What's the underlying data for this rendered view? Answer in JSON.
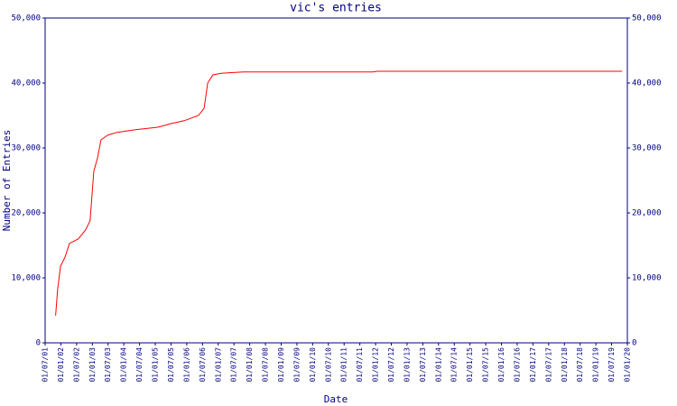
{
  "chart_data": {
    "type": "line",
    "title": "vic's entries",
    "xlabel": "Date",
    "ylabel": "Number of Entries",
    "color": "#ff0000",
    "axis_color": "#000080",
    "x": [
      "01/11/01",
      "25/11/01",
      "28/12/01",
      "18/02/02",
      "10/04/02",
      "20/07/02",
      "15/10/02",
      "05/12/02",
      "18/01/03",
      "01/03/03",
      "10/04/03",
      "01/07/03",
      "15/10/03",
      "15/05/04",
      "01/02/05",
      "01/07/05",
      "01/12/05",
      "15/05/06",
      "20/07/06",
      "01/09/06",
      "01/11/06",
      "01/02/07",
      "20/10/07",
      "01/12/11",
      "20/01/12",
      "01/11/19"
    ],
    "values": [
      4200,
      8300,
      11800,
      13200,
      15300,
      16000,
      17400,
      18800,
      26400,
      28500,
      31250,
      32000,
      32400,
      32800,
      33200,
      33750,
      34200,
      35000,
      36100,
      40000,
      41250,
      41500,
      41700,
      41700,
      41800,
      41800
    ],
    "xlim": [
      "01/07/01",
      "01/01/20"
    ],
    "xticks": [
      "01/07/01",
      "01/01/02",
      "01/07/02",
      "01/01/03",
      "01/07/03",
      "01/01/04",
      "01/07/04",
      "01/01/05",
      "01/07/05",
      "01/01/06",
      "01/07/06",
      "01/01/07",
      "01/07/07",
      "01/01/08",
      "01/07/08",
      "01/01/09",
      "01/07/09",
      "01/01/10",
      "01/07/10",
      "01/01/11",
      "01/07/11",
      "01/01/12",
      "01/07/12",
      "01/01/13",
      "01/07/13",
      "01/01/14",
      "01/07/14",
      "01/01/15",
      "01/07/15",
      "01/01/16",
      "01/07/16",
      "01/01/17",
      "01/07/17",
      "01/01/18",
      "01/07/18",
      "01/01/19",
      "01/07/19",
      "01/01/20"
    ],
    "ylim": [
      0,
      50000
    ],
    "yticks": [
      0,
      {
        "value": 10000,
        "label": "10,000"
      },
      {
        "value": 20000,
        "label": "20,000"
      },
      {
        "value": 30000,
        "label": "30,000"
      },
      {
        "value": 40000,
        "label": "40,000"
      },
      {
        "value": 50000,
        "label": "50,000"
      }
    ],
    "y2lim": [
      0,
      50000
    ],
    "y2ticks": [
      0,
      {
        "value": 10000,
        "label": "10,000"
      },
      {
        "value": 20000,
        "label": "20,000"
      },
      {
        "value": 30000,
        "label": "30,000"
      },
      {
        "value": 40000,
        "label": "40,000"
      },
      {
        "value": 50000,
        "label": "50,000"
      }
    ]
  }
}
